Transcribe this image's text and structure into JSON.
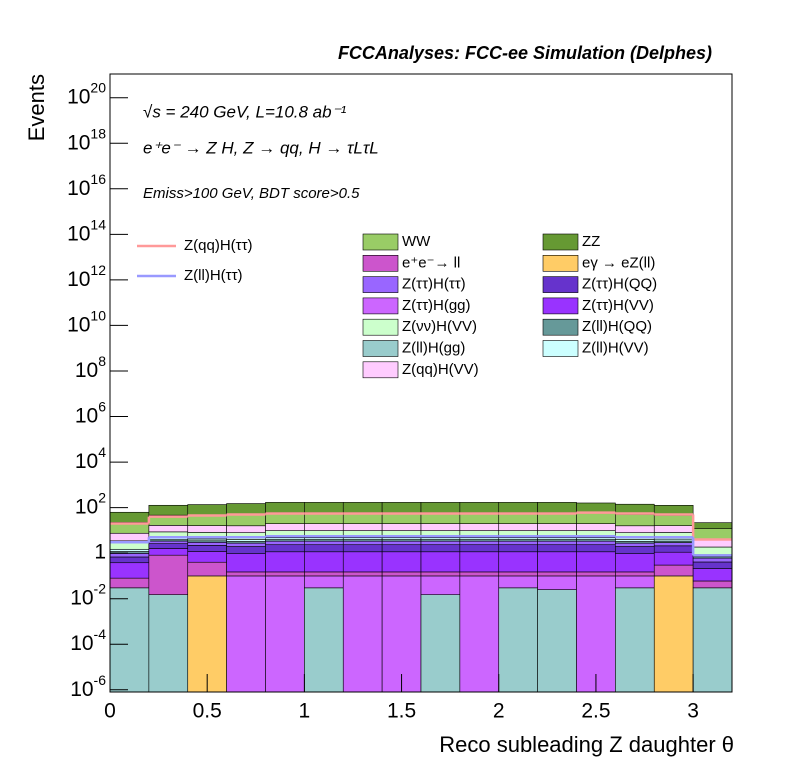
{
  "chart_data": {
    "type": "stacked-histogram",
    "title": "FCCAnalyses: FCC-ee Simulation (Delphes)",
    "annotations": [
      "√s = 240 GeV, L=10.8 ab⁻¹",
      "e⁺e⁻ → Z H, Z → qq, H → τLτL",
      "Emiss>100 GeV, BDT score>0.5"
    ],
    "x_label": "Reco subleading Z daughter θ",
    "y_label": "Events",
    "log_y": true,
    "bins": [
      0,
      0.2,
      0.4,
      0.6,
      0.8,
      1.0,
      1.2,
      1.4,
      1.6,
      1.8,
      2.0,
      2.2,
      2.4,
      2.6,
      2.8,
      3.0,
      3.2
    ],
    "xlim": [
      0,
      3.2
    ],
    "xticks": [
      0,
      0.5,
      1,
      1.5,
      2,
      2.5,
      3
    ],
    "ylim": [
      8e-07,
      1.1e+21
    ],
    "yticks": [
      {
        "value": 1e-06,
        "label": "10",
        "sup": "-6"
      },
      {
        "value": 0.0001,
        "label": "10",
        "sup": "-4"
      },
      {
        "value": 0.01,
        "label": "10",
        "sup": "-2"
      },
      1,
      {
        "value": 100.0,
        "label": "10",
        "sup": "2"
      },
      {
        "value": 10000.0,
        "label": "10",
        "sup": "4"
      },
      {
        "value": 1000000.0,
        "label": "10",
        "sup": "6"
      },
      {
        "value": 100000000.0,
        "label": "10",
        "sup": "8"
      },
      {
        "value": 10000000000.0,
        "label": "10",
        "sup": "10"
      },
      {
        "value": 1000000000000.0,
        "label": "10",
        "sup": "12"
      },
      {
        "value": 100000000000000.0,
        "label": "10",
        "sup": "14"
      },
      {
        "value": 1e+16,
        "label": "10",
        "sup": "16"
      },
      {
        "value": 1e+18,
        "label": "10",
        "sup": "18"
      },
      {
        "value": 1e+20,
        "label": "10",
        "sup": "20"
      }
    ],
    "series": [
      {
        "name": "Z(ll)H(gg)",
        "color": "#99cccc",
        "values": [
          0.03,
          0.015,
          0,
          0,
          0,
          0.03,
          0,
          0,
          0.015,
          0,
          0.03,
          0.025,
          0,
          0.03,
          0,
          0.03
        ]
      },
      {
        "name": "eγ → eZ(ll)",
        "color": "#ffcc66",
        "values": [
          0,
          0,
          0.1,
          0,
          0,
          0,
          0,
          0,
          0,
          0,
          0,
          0,
          0,
          0,
          0.1,
          0
        ]
      },
      {
        "name": "Z(ττ)H(gg)",
        "color": "#cc66ff",
        "values": [
          0,
          0,
          0,
          0.1,
          0.1,
          0.07,
          0.1,
          0.1,
          0.085,
          0.1,
          0.07,
          0.075,
          0.1,
          0.07,
          0,
          0
        ]
      },
      {
        "name": "e⁺e⁻→ ll",
        "color": "#cc55cc",
        "values": [
          0.05,
          0.8,
          0.3,
          0.05,
          0.05,
          0.05,
          0.05,
          0.05,
          0.05,
          0.05,
          0.05,
          0.05,
          0.05,
          0.05,
          0.2,
          0.03
        ]
      },
      {
        "name": "Z(ττ)H(VV)",
        "color": "#9933ff",
        "values": [
          0.3,
          0.8,
          0.8,
          0.8,
          1,
          1,
          1,
          1,
          1,
          1,
          1,
          1,
          1,
          0.8,
          0.8,
          0.15
        ]
      },
      {
        "name": "Z(ττ)H(QQ)",
        "color": "#6633cc",
        "values": [
          0.3,
          1,
          1,
          1,
          1.2,
          1.2,
          1.2,
          1.2,
          1.2,
          1.2,
          1.2,
          1.2,
          1.2,
          1,
          1,
          0.2
        ]
      },
      {
        "name": "Z(ττ)H(ττ)",
        "color": "#9966ff",
        "values": [
          0.3,
          0.8,
          0.8,
          0.8,
          1,
          1,
          1,
          1,
          1,
          1,
          1,
          1,
          1,
          0.8,
          0.8,
          0.2
        ]
      },
      {
        "name": "Z(ll)H(QQ)",
        "color": "#669999",
        "values": [
          0.2,
          0.5,
          0.5,
          0.5,
          0.6,
          0.6,
          0.6,
          0.6,
          0.6,
          0.6,
          0.6,
          0.6,
          0.6,
          0.5,
          0.5,
          0.1
        ]
      },
      {
        "name": "Z(ll)H(VV)",
        "color": "#ccffff",
        "values": [
          0.3,
          0.7,
          0.7,
          0.7,
          0.8,
          0.8,
          0.8,
          0.8,
          0.8,
          0.8,
          0.8,
          0.8,
          0.8,
          0.7,
          0.7,
          0.15
        ]
      },
      {
        "name": "Z(νν)H(VV)",
        "color": "#ccffcc",
        "values": [
          2,
          4,
          4,
          4,
          5,
          5,
          5,
          5,
          5,
          5,
          5,
          5,
          5,
          4,
          4,
          1
        ]
      },
      {
        "name": "Z(qq)H(VV)",
        "color": "#ffccff",
        "values": [
          4,
          8,
          8,
          8,
          10,
          10,
          10,
          10,
          10,
          10,
          10,
          10,
          10,
          8,
          8,
          2
        ]
      },
      {
        "name": "WW",
        "color": "#99cc66",
        "values": [
          15,
          30,
          30,
          35,
          40,
          40,
          40,
          40,
          40,
          40,
          40,
          40,
          40,
          35,
          30,
          8
        ]
      },
      {
        "name": "ZZ",
        "color": "#669933",
        "values": [
          40,
          80,
          90,
          100,
          110,
          110,
          110,
          110,
          110,
          110,
          110,
          110,
          100,
          90,
          80,
          10
        ]
      }
    ],
    "signals": [
      {
        "name": "Z(qq)H(ττ)",
        "color": "#ff9999",
        "values": [
          20,
          40,
          45,
          50,
          55,
          55,
          55,
          55,
          55,
          55,
          55,
          55,
          60,
          55,
          50,
          4
        ]
      },
      {
        "name": "Z(ll)H(ττ)",
        "color": "#9999ff",
        "values": [
          3,
          5,
          5,
          5,
          5.5,
          5.5,
          5.5,
          5.5,
          5.5,
          5.5,
          5.5,
          5.5,
          5.5,
          5,
          5,
          0.8
        ]
      }
    ]
  }
}
